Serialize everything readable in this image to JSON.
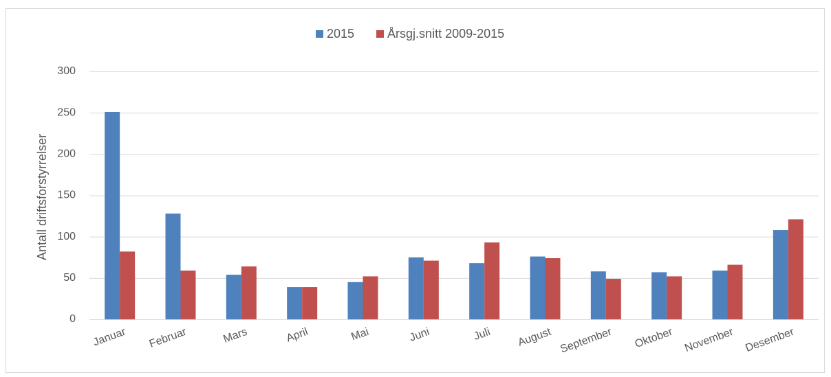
{
  "chart_data": {
    "type": "bar",
    "y_label": "Antall driftsforstyrrelser",
    "categories": [
      "Januar",
      "Februar",
      "Mars",
      "April",
      "Mai",
      "Juni",
      "Juli",
      "August",
      "September",
      "Oktober",
      "November",
      "Desember"
    ],
    "series": [
      {
        "name": "2015",
        "color": "#4f81bd",
        "values": [
          251,
          128,
          54,
          39,
          45,
          75,
          68,
          76,
          58,
          57,
          59,
          108
        ]
      },
      {
        "name": "Årsgj.snitt 2009-2015",
        "color": "#c0504d",
        "values": [
          82,
          59,
          64,
          39,
          52,
          71,
          93,
          74,
          49,
          52,
          66,
          121
        ]
      }
    ],
    "ylim": [
      0,
      300
    ],
    "yticks": [
      0,
      50,
      100,
      150,
      200,
      250,
      300
    ],
    "grid": true,
    "legend": "top"
  }
}
